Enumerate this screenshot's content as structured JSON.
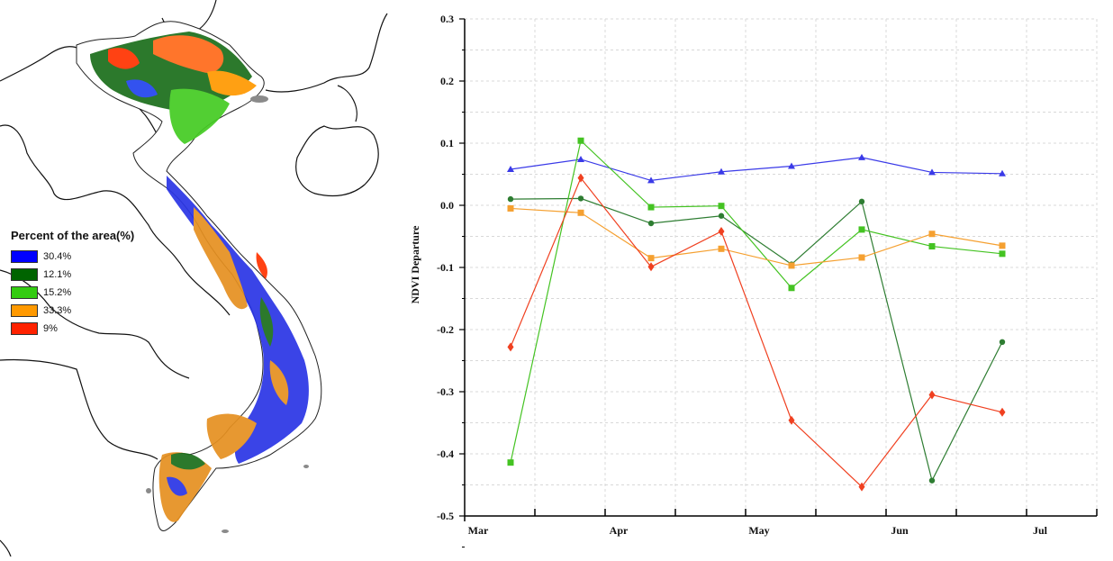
{
  "map": {
    "legend_title": "Percent of the area(%)",
    "legend": [
      {
        "label": "30.4%",
        "color": "#0000ff"
      },
      {
        "label": "12.1%",
        "color": "#006400"
      },
      {
        "label": "15.2%",
        "color": "#33cc11"
      },
      {
        "label": "33.3%",
        "color": "#ff9900"
      },
      {
        "label": "9%",
        "color": "#ff2200"
      }
    ]
  },
  "chart_data": {
    "type": "line",
    "title": "",
    "xlabel": "",
    "ylabel": "NDVI Departure",
    "ylim": [
      -0.5,
      0.3
    ],
    "yticks": [
      "0.3",
      "0.2",
      "0.1",
      "0.0",
      "-0.1",
      "-0.2",
      "-0.3",
      "-0.4",
      "-0.5"
    ],
    "month_labels": [
      "Mar",
      "Apr",
      "May",
      "Jun",
      "Jul"
    ],
    "x_periods": 9,
    "grid": true,
    "series": [
      {
        "color": "#3a3ae8",
        "marker": "triangle",
        "values": [
          0.058,
          0.074,
          0.04,
          0.054,
          0.063,
          0.077,
          0.053,
          0.051
        ]
      },
      {
        "color": "#2e7d32",
        "marker": "circle",
        "values": [
          0.01,
          0.011,
          -0.029,
          -0.017,
          -0.095,
          0.006,
          -0.443,
          -0.22
        ]
      },
      {
        "color": "#44c322",
        "marker": "square",
        "values": [
          -0.414,
          0.104,
          -0.003,
          -0.001,
          -0.133,
          -0.039,
          -0.066,
          -0.078
        ]
      },
      {
        "color": "#f5a030",
        "marker": "square",
        "values": [
          -0.005,
          -0.012,
          -0.085,
          -0.07,
          -0.097,
          -0.084,
          -0.046,
          -0.065
        ]
      },
      {
        "color": "#f04020",
        "marker": "diamond",
        "values": [
          -0.228,
          0.044,
          -0.099,
          -0.042,
          -0.346,
          -0.453,
          -0.305,
          -0.333
        ]
      }
    ]
  }
}
